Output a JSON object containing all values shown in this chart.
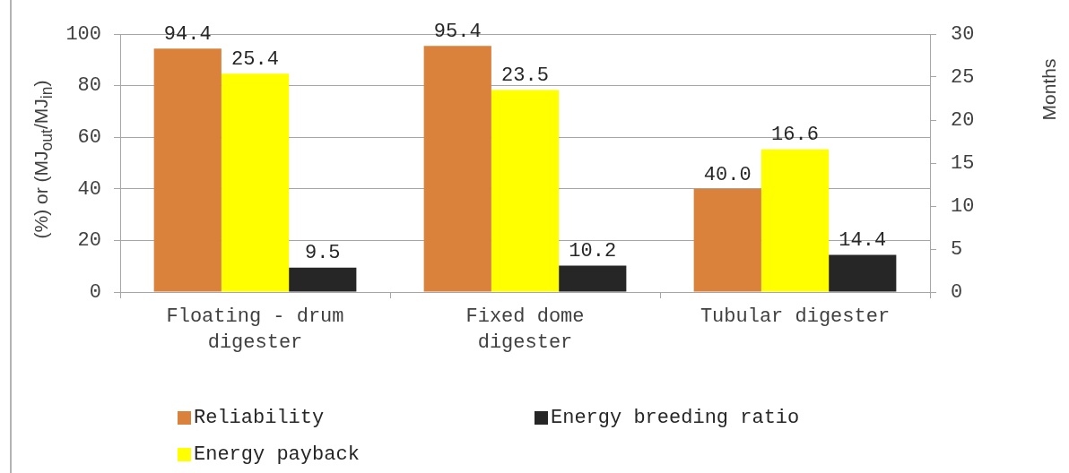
{
  "chart_data": {
    "type": "bar",
    "categories": [
      "Floating - drum digester",
      "Fixed dome digester",
      "Tubular digester"
    ],
    "series": [
      {
        "name": "Reliability",
        "color": "#da823c",
        "values": [
          94.4,
          95.4,
          40.0
        ],
        "value_labels": [
          "94.4",
          "95.4",
          "40.0"
        ]
      },
      {
        "name": "Energy payback",
        "color": "#ffff00",
        "values": [
          25.4,
          23.5,
          16.6
        ],
        "value_labels": [
          "25.4",
          "23.5",
          "16.6"
        ],
        "axis": "y2"
      },
      {
        "name": "Energy breeding ratio",
        "color": "#262626",
        "values": [
          9.5,
          10.2,
          14.4
        ],
        "value_labels": [
          "9.5",
          "10.2",
          "14.4"
        ]
      }
    ],
    "ylabel": "(%) or (MJ$_{out}$/MJ$_{in}$)",
    "y2label": "Months",
    "ylim": [
      0,
      100
    ],
    "yticks": [
      0,
      20,
      40,
      60,
      80,
      100
    ],
    "y2lim": [
      0,
      30
    ],
    "y2ticks": [
      0,
      5,
      10,
      15,
      20,
      25,
      30
    ],
    "grid": "y",
    "legend": "bottom"
  }
}
